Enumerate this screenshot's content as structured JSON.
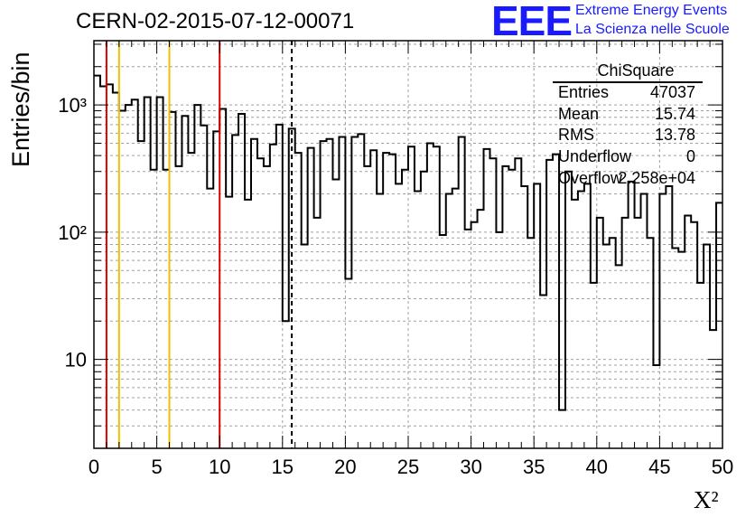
{
  "chart_data": {
    "type": "histogram",
    "title": "CERN-02-2015-07-12-00071",
    "xlabel": "X²",
    "ylabel": "Entries/bin",
    "xlim": [
      0,
      50
    ],
    "ylim": [
      2,
      3200
    ],
    "yscale": "log",
    "grid": true,
    "bin_width": 0.5,
    "x_ticks": [
      "0",
      "5",
      "10",
      "15",
      "20",
      "25",
      "30",
      "35",
      "40",
      "45",
      "50"
    ],
    "y_ticks": [
      {
        "value": 10,
        "label": "10"
      },
      {
        "value": 100,
        "label": "10²"
      },
      {
        "value": 1000,
        "label": "10³"
      }
    ],
    "bin_values": [
      1700,
      1400,
      1450,
      1250,
      900,
      1000,
      1100,
      520,
      1150,
      310,
      1150,
      310,
      880,
      330,
      820,
      420,
      1000,
      690,
      220,
      620,
      930,
      190,
      580,
      850,
      180,
      540,
      380,
      330,
      490,
      700,
      20,
      650,
      420,
      80,
      460,
      130,
      520,
      540,
      260,
      560,
      43,
      560,
      590,
      330,
      440,
      200,
      420,
      410,
      240,
      310,
      470,
      210,
      300,
      500,
      470,
      95,
      200,
      220,
      560,
      105,
      120,
      150,
      450,
      380,
      100,
      330,
      310,
      380,
      230,
      90,
      240,
      32,
      370,
      410,
      4,
      300,
      180,
      210,
      240,
      40,
      130,
      80,
      90,
      55,
      130,
      250,
      130,
      200,
      90,
      9,
      200,
      230,
      75,
      70,
      135,
      120,
      40,
      80,
      17,
      170
    ],
    "markers": [
      {
        "x": 1,
        "color": "#e00000",
        "style": "solid"
      },
      {
        "x": 2,
        "color": "#f0c000",
        "style": "solid"
      },
      {
        "x": 6,
        "color": "#f0c000",
        "style": "solid"
      },
      {
        "x": 10,
        "color": "#e00000",
        "style": "solid"
      },
      {
        "x": 15.74,
        "color": "#000000",
        "style": "dashed"
      }
    ],
    "stats": {
      "name": "ChiSquare",
      "rows": [
        {
          "label": "Entries",
          "value": "47037"
        },
        {
          "label": "Mean",
          "value": "15.74"
        },
        {
          "label": "RMS",
          "value": "13.78"
        },
        {
          "label": "Underflow",
          "value": "0"
        },
        {
          "label": "Overflow",
          "value": "2.258e+04"
        }
      ]
    }
  },
  "logo": {
    "mark": "EEE",
    "line1": "Extreme Energy Events",
    "line2": "La Scienza nelle Scuole",
    "color": "#1a1aff"
  }
}
